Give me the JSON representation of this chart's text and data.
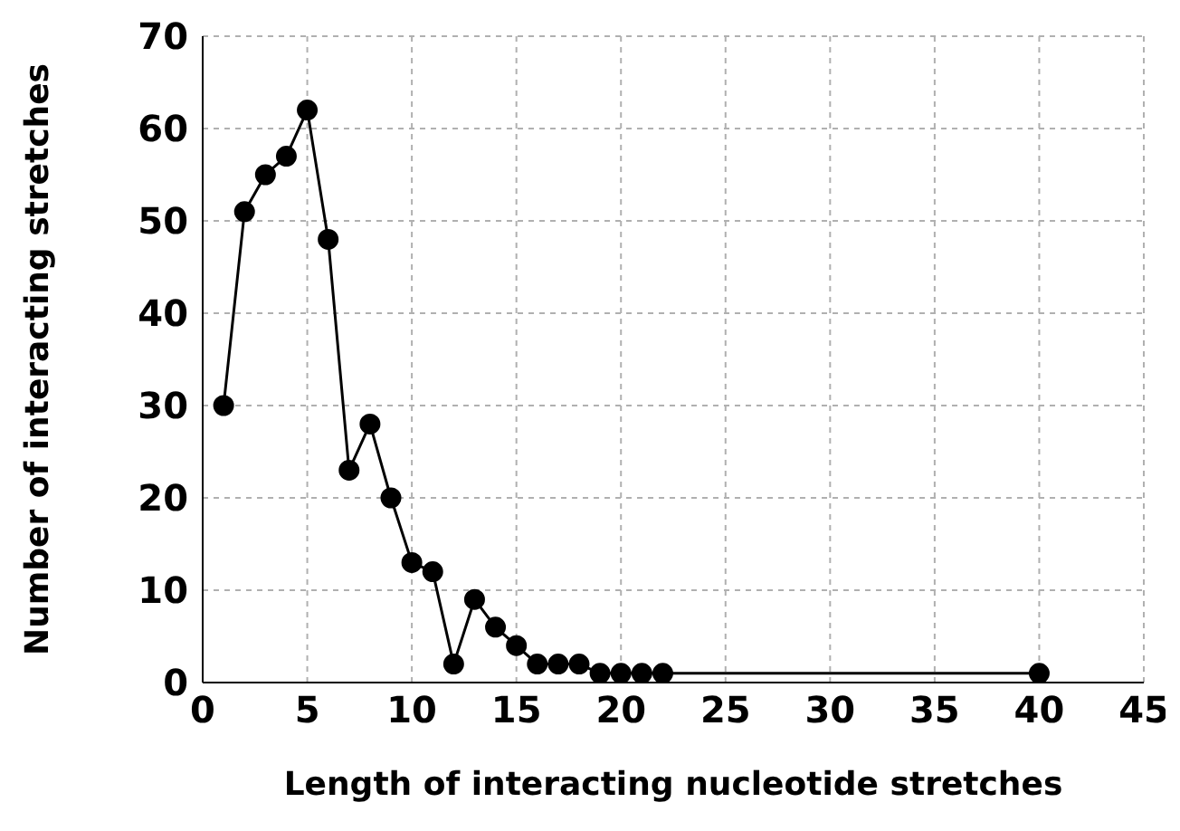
{
  "chart_data": {
    "type": "line",
    "xlabel": "Length of interacting nucleotide stretches",
    "ylabel": "Number of interacting stretches",
    "x": [
      1,
      2,
      3,
      4,
      5,
      6,
      7,
      8,
      9,
      10,
      11,
      12,
      13,
      14,
      15,
      16,
      17,
      18,
      19,
      20,
      21,
      22,
      40
    ],
    "series": [
      {
        "color": "#000000",
        "values": [
          30,
          51,
          55,
          57,
          62,
          48,
          23,
          28,
          20,
          13,
          12,
          2,
          9,
          6,
          4,
          2,
          2,
          2,
          1,
          1,
          1,
          1,
          1
        ]
      }
    ],
    "xlim": [
      0,
      45
    ],
    "xticks": [
      0,
      5,
      10,
      15,
      20,
      25,
      30,
      35,
      40,
      45
    ],
    "ylim": [
      0,
      70
    ],
    "yticks": [
      0,
      10,
      20,
      30,
      40,
      50,
      60,
      70
    ],
    "grid": true,
    "marker": "circle",
    "line_style": "solid"
  }
}
